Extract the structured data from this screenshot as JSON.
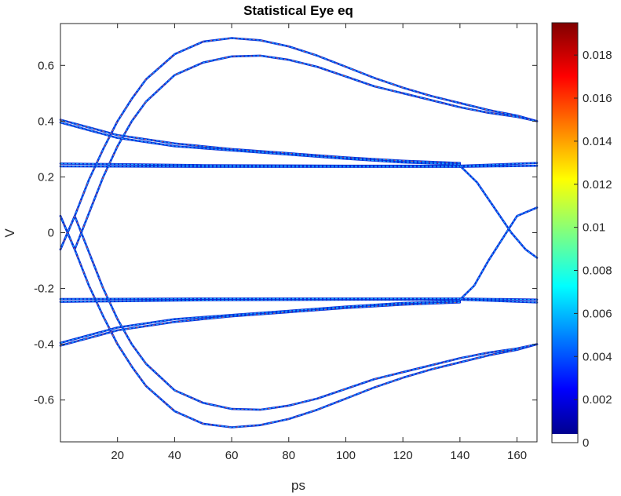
{
  "chart_data": {
    "type": "heatmap",
    "title": "Statistical Eye eq",
    "xlabel": "ps",
    "ylabel": "V",
    "xlim": [
      0,
      167
    ],
    "ylim": [
      -0.75,
      0.75
    ],
    "x_ticks": [
      20,
      40,
      60,
      80,
      100,
      120,
      140,
      160
    ],
    "y_ticks": [
      0.6,
      0.4,
      0.2,
      0,
      -0.2,
      -0.4,
      -0.6
    ],
    "x_tick_labels": [
      "20",
      "40",
      "60",
      "80",
      "100",
      "120",
      "140",
      "160"
    ],
    "y_tick_labels": [
      "0.6",
      "0.4",
      "0.2",
      "0",
      "-0.2",
      "-0.4",
      "-0.6"
    ],
    "colorbar": {
      "colormap": "jet",
      "range": [
        0,
        0.0195
      ],
      "ticks": [
        0,
        0.002,
        0.004,
        0.006,
        0.008,
        0.01,
        0.012,
        0.014,
        0.016,
        0.018
      ],
      "tick_labels": [
        "0",
        "0.002",
        "0.004",
        "0.006",
        "0.008",
        "0.01",
        "0.012",
        "0.014",
        "0.016",
        "0.018"
      ],
      "zero_color": "#ffffff"
    },
    "traces": [
      {
        "name": "upper-outer-eye",
        "x": [
          0,
          5,
          10,
          15,
          20,
          25,
          30,
          40,
          50,
          60,
          70,
          80,
          90,
          100,
          110,
          120,
          130,
          140,
          150,
          160,
          167
        ],
        "y": [
          -0.06,
          0.06,
          0.19,
          0.3,
          0.4,
          0.48,
          0.55,
          0.64,
          0.685,
          0.698,
          0.69,
          0.668,
          0.635,
          0.595,
          0.555,
          0.52,
          0.49,
          0.465,
          0.44,
          0.42,
          0.4
        ]
      },
      {
        "name": "upper-inner-eye",
        "x": [
          0,
          5,
          10,
          15,
          20,
          25,
          30,
          40,
          50,
          60,
          70,
          80,
          90,
          100,
          110,
          120,
          130,
          140,
          150,
          160,
          167
        ],
        "y": [
          0.06,
          -0.06,
          0.07,
          0.2,
          0.31,
          0.4,
          0.47,
          0.565,
          0.61,
          0.632,
          0.635,
          0.62,
          0.595,
          0.56,
          0.525,
          0.5,
          0.475,
          0.45,
          0.43,
          0.415,
          0.4
        ]
      },
      {
        "name": "lower-outer-eye",
        "x": [
          0,
          5,
          10,
          15,
          20,
          25,
          30,
          40,
          50,
          60,
          70,
          80,
          90,
          100,
          110,
          120,
          130,
          140,
          150,
          160,
          167
        ],
        "y": [
          0.06,
          -0.06,
          -0.19,
          -0.3,
          -0.4,
          -0.48,
          -0.55,
          -0.64,
          -0.685,
          -0.698,
          -0.69,
          -0.668,
          -0.635,
          -0.595,
          -0.555,
          -0.52,
          -0.49,
          -0.465,
          -0.44,
          -0.42,
          -0.4
        ]
      },
      {
        "name": "lower-inner-eye",
        "x": [
          0,
          5,
          10,
          15,
          20,
          25,
          30,
          40,
          50,
          60,
          70,
          80,
          90,
          100,
          110,
          120,
          130,
          140,
          150,
          160,
          167
        ],
        "y": [
          -0.06,
          0.06,
          -0.07,
          -0.2,
          -0.31,
          -0.4,
          -0.47,
          -0.565,
          -0.61,
          -0.632,
          -0.635,
          -0.62,
          -0.595,
          -0.56,
          -0.525,
          -0.5,
          -0.475,
          -0.45,
          -0.43,
          -0.415,
          -0.4
        ]
      },
      {
        "name": "upper-decay-a",
        "x": [
          0,
          20,
          40,
          60,
          80,
          100,
          120,
          140
        ],
        "y": [
          0.405,
          0.35,
          0.32,
          0.3,
          0.285,
          0.27,
          0.258,
          0.25
        ]
      },
      {
        "name": "upper-decay-b",
        "x": [
          0,
          20,
          40,
          60,
          80,
          100,
          120,
          140
        ],
        "y": [
          0.395,
          0.34,
          0.31,
          0.295,
          0.28,
          0.265,
          0.252,
          0.245
        ]
      },
      {
        "name": "upper-flat-a",
        "x": [
          0,
          50,
          100,
          140,
          167
        ],
        "y": [
          0.248,
          0.242,
          0.24,
          0.24,
          0.25
        ]
      },
      {
        "name": "upper-flat-b",
        "x": [
          0,
          50,
          100,
          140,
          167
        ],
        "y": [
          0.238,
          0.236,
          0.236,
          0.236,
          0.24
        ]
      },
      {
        "name": "lower-decay-a",
        "x": [
          0,
          20,
          40,
          60,
          80,
          100,
          120,
          140
        ],
        "y": [
          -0.405,
          -0.35,
          -0.32,
          -0.3,
          -0.285,
          -0.27,
          -0.258,
          -0.25
        ]
      },
      {
        "name": "lower-decay-b",
        "x": [
          0,
          20,
          40,
          60,
          80,
          100,
          120,
          140
        ],
        "y": [
          -0.395,
          -0.34,
          -0.31,
          -0.295,
          -0.28,
          -0.265,
          -0.252,
          -0.245
        ]
      },
      {
        "name": "lower-flat-a",
        "x": [
          0,
          50,
          100,
          140,
          167
        ],
        "y": [
          -0.248,
          -0.242,
          -0.24,
          -0.24,
          -0.25
        ]
      },
      {
        "name": "lower-flat-b",
        "x": [
          0,
          50,
          100,
          140,
          167
        ],
        "y": [
          -0.238,
          -0.236,
          -0.236,
          -0.236,
          -0.24
        ]
      },
      {
        "name": "right-crossing-rise-a",
        "x": [
          140,
          145,
          150,
          155,
          160,
          167
        ],
        "y": [
          -0.24,
          -0.19,
          -0.1,
          -0.02,
          0.06,
          0.09
        ]
      },
      {
        "name": "right-crossing-rise-b",
        "x": [
          140,
          146,
          152,
          158,
          163,
          167
        ],
        "y": [
          0.24,
          0.18,
          0.09,
          0.0,
          -0.06,
          -0.09
        ]
      }
    ]
  }
}
